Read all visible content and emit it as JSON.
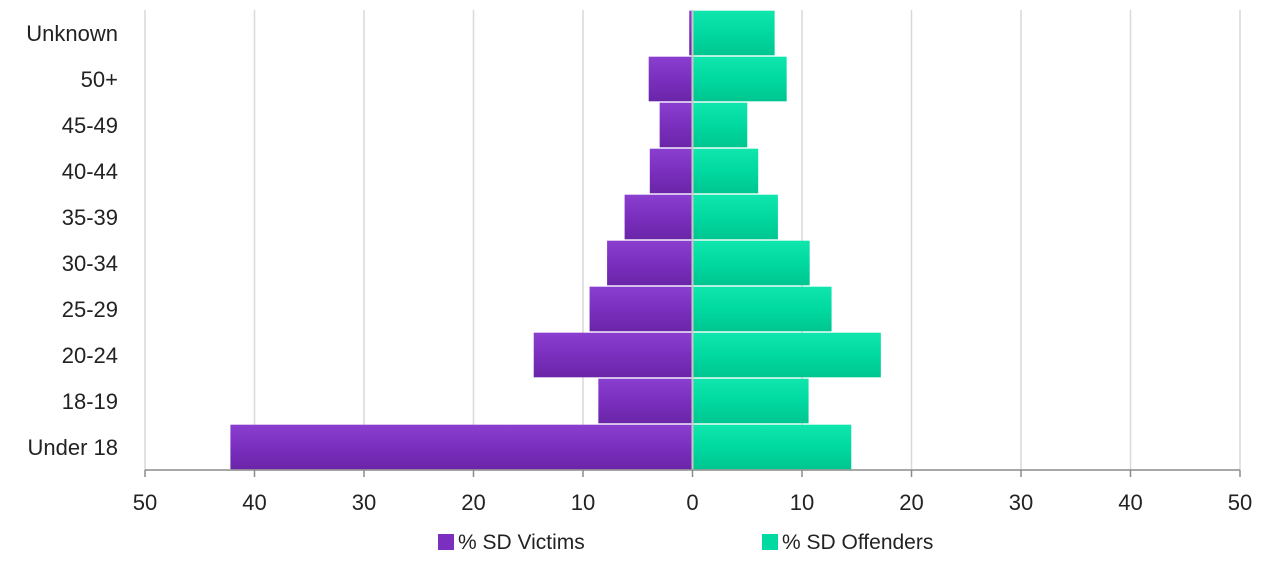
{
  "chart_data": {
    "type": "bar",
    "orientation": "horizontal",
    "layout": "population-pyramid",
    "categories": [
      "Under 18",
      "18-19",
      "20-24",
      "25-29",
      "30-34",
      "35-39",
      "40-44",
      "45-49",
      "50+",
      "Unknown"
    ],
    "series": [
      {
        "name": "% SD Victims",
        "side": "left",
        "color": "#7B2FBE",
        "values": [
          42.2,
          8.6,
          14.5,
          9.4,
          7.8,
          6.2,
          3.9,
          3.0,
          4.0,
          0.3
        ]
      },
      {
        "name": "% SD Offenders",
        "side": "right",
        "color": "#00D9A0",
        "values": [
          14.5,
          10.6,
          17.2,
          12.7,
          10.7,
          7.8,
          6.0,
          5.0,
          8.6,
          7.5
        ]
      }
    ],
    "xlim": [
      -50,
      50
    ],
    "x_ticks": [
      -50,
      -40,
      -30,
      -20,
      -10,
      0,
      10,
      20,
      30,
      40,
      50
    ],
    "x_tick_labels": [
      "50",
      "40",
      "30",
      "20",
      "10",
      "0",
      "10",
      "20",
      "30",
      "40",
      "50"
    ],
    "grid": "vertical",
    "legend_position": "bottom-center",
    "title": "",
    "xlabel": "",
    "ylabel": ""
  }
}
